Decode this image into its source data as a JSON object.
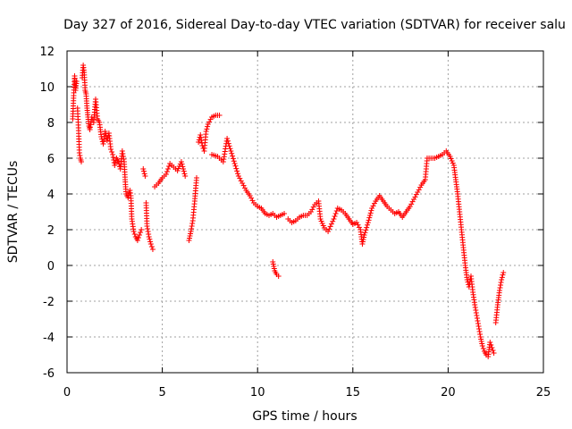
{
  "chart_data": {
    "type": "scatter",
    "title": "Day 327 of 2016, Sidereal Day-to-day VTEC variation (SDTVAR) for receiver salu",
    "xlabel": "GPS time / hours",
    "ylabel": "SDTVAR / TECUs",
    "xlim": [
      0,
      25
    ],
    "ylim": [
      -6,
      12
    ],
    "xticks": [
      0,
      5,
      10,
      15,
      20,
      25
    ],
    "yticks": [
      -6,
      -4,
      -2,
      0,
      2,
      4,
      6,
      8,
      10,
      12
    ],
    "grid": true,
    "marker": "plus",
    "series": [
      {
        "name": "SDTVAR",
        "color": "#ff0000",
        "points": [
          [
            0.3,
            8.2
          ],
          [
            0.35,
            9.5
          ],
          [
            0.4,
            10.6
          ],
          [
            0.45,
            9.8
          ],
          [
            0.5,
            10.3
          ],
          [
            0.55,
            8.8
          ],
          [
            0.6,
            7.7
          ],
          [
            0.65,
            6.3
          ],
          [
            0.7,
            6.0
          ],
          [
            0.75,
            5.8
          ],
          [
            0.8,
            10.5
          ],
          [
            0.85,
            11.2
          ],
          [
            0.9,
            10.8
          ],
          [
            0.95,
            9.8
          ],
          [
            1.0,
            9.6
          ],
          [
            1.05,
            8.8
          ],
          [
            1.1,
            8.3
          ],
          [
            1.15,
            7.8
          ],
          [
            1.2,
            7.6
          ],
          [
            1.3,
            8.3
          ],
          [
            1.4,
            8.0
          ],
          [
            1.5,
            9.3
          ],
          [
            1.6,
            8.2
          ],
          [
            1.7,
            8.0
          ],
          [
            1.8,
            7.2
          ],
          [
            1.9,
            6.8
          ],
          [
            2.0,
            7.5
          ],
          [
            2.1,
            7.0
          ],
          [
            2.2,
            7.4
          ],
          [
            2.3,
            6.5
          ],
          [
            2.4,
            6.2
          ],
          [
            2.5,
            5.6
          ],
          [
            2.6,
            6.0
          ],
          [
            2.7,
            5.8
          ],
          [
            2.8,
            5.4
          ],
          [
            2.9,
            6.4
          ],
          [
            3.0,
            5.8
          ],
          [
            3.05,
            4.8
          ],
          [
            3.1,
            4.0
          ],
          [
            3.2,
            3.8
          ],
          [
            3.3,
            4.2
          ],
          [
            3.35,
            3.9
          ],
          [
            3.4,
            2.6
          ],
          [
            3.5,
            1.9
          ],
          [
            3.6,
            1.6
          ],
          [
            3.7,
            1.4
          ],
          [
            3.8,
            1.7
          ],
          [
            3.9,
            2.0
          ],
          [
            4.0,
            5.4
          ],
          [
            4.1,
            5.0
          ],
          [
            4.15,
            3.5
          ],
          [
            4.2,
            2.2
          ],
          [
            4.3,
            1.6
          ],
          [
            4.4,
            1.2
          ],
          [
            4.5,
            0.9
          ],
          [
            4.6,
            4.4
          ],
          [
            4.8,
            4.6
          ],
          [
            5.0,
            4.9
          ],
          [
            5.2,
            5.1
          ],
          [
            5.4,
            5.7
          ],
          [
            5.6,
            5.5
          ],
          [
            5.8,
            5.3
          ],
          [
            6.0,
            5.8
          ],
          [
            6.2,
            5.0
          ],
          [
            6.4,
            1.4
          ],
          [
            6.5,
            1.9
          ],
          [
            6.6,
            2.5
          ],
          [
            6.7,
            3.6
          ],
          [
            6.8,
            4.9
          ],
          [
            6.9,
            6.9
          ],
          [
            7.0,
            7.3
          ],
          [
            7.1,
            6.7
          ],
          [
            7.2,
            6.4
          ],
          [
            7.3,
            7.5
          ],
          [
            7.4,
            7.9
          ],
          [
            7.6,
            8.3
          ],
          [
            7.8,
            8.4
          ],
          [
            8.0,
            8.4
          ],
          [
            7.6,
            6.2
          ],
          [
            7.9,
            6.1
          ],
          [
            8.2,
            5.8
          ],
          [
            8.4,
            7.1
          ],
          [
            8.6,
            6.4
          ],
          [
            8.8,
            5.7
          ],
          [
            9.0,
            5.0
          ],
          [
            9.2,
            4.6
          ],
          [
            9.4,
            4.2
          ],
          [
            9.6,
            3.9
          ],
          [
            9.8,
            3.5
          ],
          [
            10.0,
            3.3
          ],
          [
            10.2,
            3.2
          ],
          [
            10.4,
            2.9
          ],
          [
            10.6,
            2.8
          ],
          [
            10.8,
            2.9
          ],
          [
            11.0,
            2.7
          ],
          [
            11.2,
            2.8
          ],
          [
            11.4,
            2.9
          ],
          [
            10.8,
            0.2
          ],
          [
            10.9,
            -0.3
          ],
          [
            11.0,
            -0.5
          ],
          [
            11.1,
            -0.6
          ],
          [
            11.6,
            2.6
          ],
          [
            11.8,
            2.4
          ],
          [
            12.0,
            2.5
          ],
          [
            12.2,
            2.7
          ],
          [
            12.4,
            2.8
          ],
          [
            12.6,
            2.8
          ],
          [
            12.8,
            3.0
          ],
          [
            13.0,
            3.4
          ],
          [
            13.2,
            3.6
          ],
          [
            13.3,
            2.6
          ],
          [
            13.5,
            2.1
          ],
          [
            13.7,
            1.9
          ],
          [
            14.0,
            2.6
          ],
          [
            14.2,
            3.2
          ],
          [
            14.4,
            3.1
          ],
          [
            14.6,
            2.9
          ],
          [
            14.8,
            2.6
          ],
          [
            15.0,
            2.3
          ],
          [
            15.2,
            2.4
          ],
          [
            15.4,
            2.0
          ],
          [
            15.5,
            1.2
          ],
          [
            15.6,
            1.7
          ],
          [
            15.8,
            2.4
          ],
          [
            16.0,
            3.2
          ],
          [
            16.2,
            3.6
          ],
          [
            16.4,
            3.9
          ],
          [
            16.6,
            3.6
          ],
          [
            16.8,
            3.3
          ],
          [
            17.0,
            3.1
          ],
          [
            17.2,
            2.9
          ],
          [
            17.4,
            3.0
          ],
          [
            17.6,
            2.7
          ],
          [
            17.8,
            3.0
          ],
          [
            18.0,
            3.3
          ],
          [
            18.2,
            3.7
          ],
          [
            18.4,
            4.1
          ],
          [
            18.6,
            4.5
          ],
          [
            18.8,
            4.8
          ],
          [
            18.9,
            6.0
          ],
          [
            19.1,
            6.0
          ],
          [
            19.3,
            6.0
          ],
          [
            19.5,
            6.1
          ],
          [
            19.7,
            6.2
          ],
          [
            19.9,
            6.4
          ],
          [
            20.1,
            6.1
          ],
          [
            20.3,
            5.6
          ],
          [
            20.4,
            4.8
          ],
          [
            20.5,
            4.0
          ],
          [
            20.6,
            3.0
          ],
          [
            20.7,
            2.0
          ],
          [
            20.8,
            1.0
          ],
          [
            20.9,
            0.0
          ],
          [
            21.0,
            -0.8
          ],
          [
            21.1,
            -1.2
          ],
          [
            21.2,
            -0.6
          ],
          [
            21.3,
            -1.5
          ],
          [
            21.4,
            -2.2
          ],
          [
            21.5,
            -2.8
          ],
          [
            21.6,
            -3.4
          ],
          [
            21.7,
            -4.0
          ],
          [
            21.8,
            -4.5
          ],
          [
            21.9,
            -4.8
          ],
          [
            22.0,
            -5.0
          ],
          [
            22.1,
            -5.1
          ],
          [
            22.2,
            -4.3
          ],
          [
            22.3,
            -4.6
          ],
          [
            22.4,
            -4.9
          ],
          [
            22.5,
            -3.2
          ],
          [
            22.6,
            -2.2
          ],
          [
            22.7,
            -1.4
          ],
          [
            22.8,
            -0.8
          ],
          [
            22.9,
            -0.4
          ]
        ]
      }
    ]
  }
}
